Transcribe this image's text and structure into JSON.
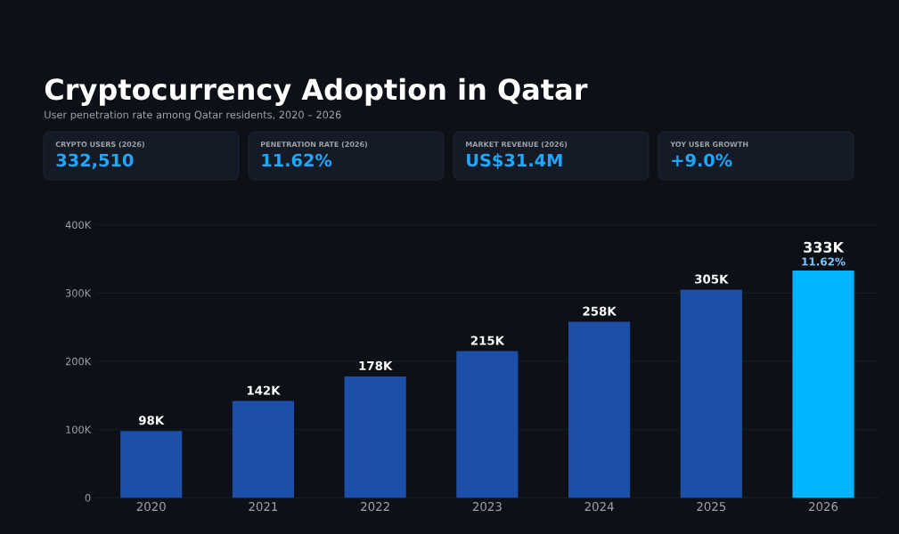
{
  "chart_data": {
    "type": "bar",
    "title": "Cryptocurrency Adoption in Qatar",
    "subtitle": "User penetration rate among Qatar residents, 2020 – 2026",
    "categories": [
      "2020",
      "2021",
      "2022",
      "2023",
      "2024",
      "2025",
      "2026"
    ],
    "values": [
      98000,
      142000,
      178000,
      215000,
      258000,
      305000,
      333000
    ],
    "colors": [
      "#1d4fa8",
      "#1d4fa8",
      "#1d4fa8",
      "#1d4fa8",
      "#1d4fa8",
      "#1d4fa8",
      "#00b4ff"
    ],
    "value_labels": [
      "98K",
      "142K",
      "178K",
      "215K",
      "258K",
      "305K",
      "333K"
    ],
    "ylim": [
      0,
      400000
    ],
    "yticks": [
      0,
      {
        "value": 100000,
        "label": "100K"
      },
      {
        "value": 200000,
        "label": "200K"
      },
      {
        "value": 300000,
        "label": "300K"
      },
      {
        "value": 400000,
        "label": "400K"
      }
    ],
    "grid": "y",
    "annotations": [
      "CRYPTO USERS (2026)",
      "332,510",
      "PENETRATION RATE (2026)",
      "11.62%",
      "MARKET REVENUE (2026)",
      "US$31.4M",
      "YOY USER GROWTH",
      "+9.0%",
      {
        "text": "11.62%",
        "x": "2026",
        "y": 333000
      }
    ]
  }
}
